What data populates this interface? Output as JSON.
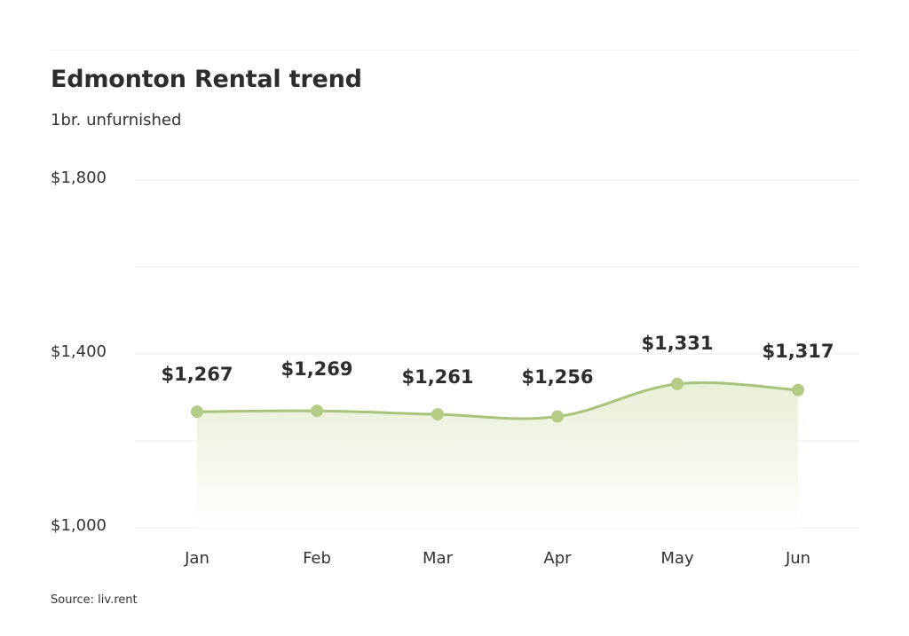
{
  "header": {
    "title": "Edmonton Rental trend",
    "subtitle": "1br. unfurnished"
  },
  "y_axis": {
    "ticks": [
      "$1,800",
      "$1,400",
      "$1,000"
    ]
  },
  "x_axis": {
    "ticks": [
      "Jan",
      "Feb",
      "Mar",
      "Apr",
      "May",
      "Jun"
    ]
  },
  "data_labels": [
    "$1,267",
    "$1,269",
    "$1,261",
    "$1,256",
    "$1,331",
    "$1,317"
  ],
  "footer": {
    "source": "Source: liv.rent"
  },
  "colors": {
    "line": "#a8c47a",
    "marker": "#b4cc86",
    "fill_top": "#e9f0d8",
    "fill_bottom": "#ffffff",
    "grid": "#f2f2f2",
    "text": "#2d2d2d"
  },
  "chart_data": {
    "type": "area",
    "title": "Edmonton Rental trend",
    "subtitle": "1br. unfurnished",
    "categories": [
      "Jan",
      "Feb",
      "Mar",
      "Apr",
      "May",
      "Jun"
    ],
    "series": [
      {
        "name": "1br. unfurnished",
        "values": [
          1267,
          1269,
          1261,
          1256,
          1331,
          1317
        ]
      }
    ],
    "xlabel": "",
    "ylabel": "",
    "ylim": [
      1000,
      1800
    ],
    "yticks": [
      1000,
      1400,
      1800
    ],
    "grid": true,
    "smooth": true,
    "data_labels": true,
    "legend": "none",
    "source": "Source: liv.rent"
  }
}
